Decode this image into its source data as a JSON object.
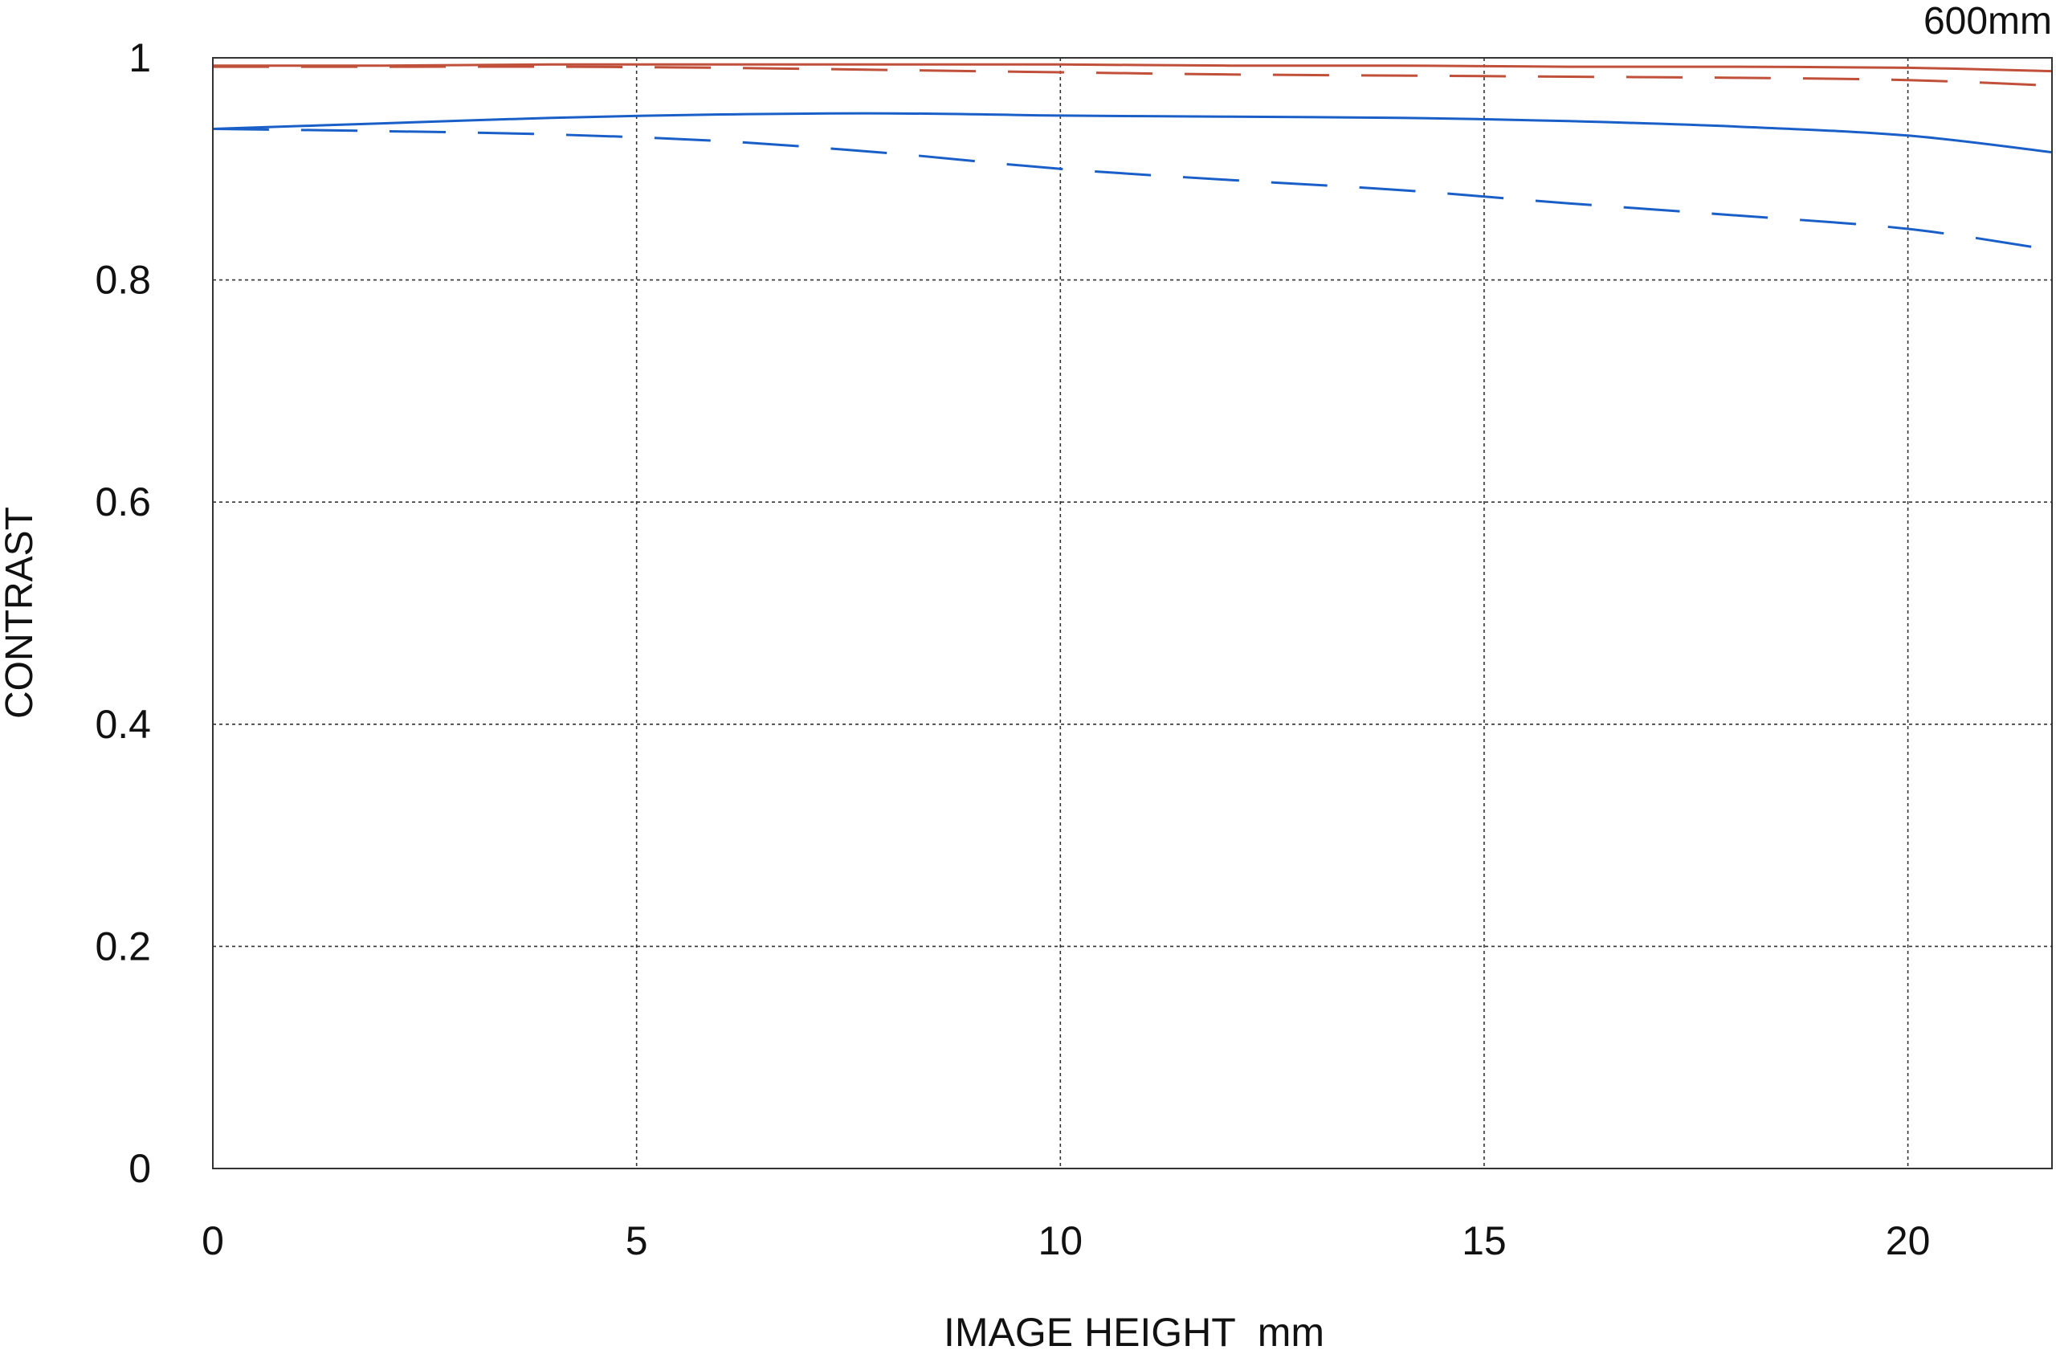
{
  "chart_data": {
    "type": "line",
    "title": "",
    "annotation": "600mm",
    "xlabel": "IMAGE HEIGHT  mm",
    "ylabel": "CONTRAST",
    "xlim": [
      0,
      21.7
    ],
    "ylim": [
      0,
      1
    ],
    "x_ticks": [
      0,
      5,
      10,
      15,
      20
    ],
    "x_tick_labels": [
      "0",
      "5",
      "10",
      "15",
      "20"
    ],
    "y_ticks": [
      0,
      0.2,
      0.4,
      0.6,
      0.8,
      1
    ],
    "y_tick_labels": [
      "0",
      "0.2",
      "0.4",
      "0.6",
      "0.8",
      "1"
    ],
    "grid": true,
    "series": [
      {
        "color": "#c0503a",
        "style": "solid",
        "x": [
          0,
          2,
          4,
          6,
          8,
          10,
          12,
          14,
          16,
          18,
          20,
          21.7
        ],
        "y": [
          0.993,
          0.993,
          0.994,
          0.994,
          0.994,
          0.994,
          0.993,
          0.993,
          0.992,
          0.992,
          0.991,
          0.988
        ]
      },
      {
        "color": "#c0503a",
        "style": "dashed",
        "x": [
          0,
          2,
          4,
          6,
          8,
          10,
          12,
          14,
          16,
          18,
          20,
          21.7
        ],
        "y": [
          0.992,
          0.992,
          0.992,
          0.991,
          0.989,
          0.987,
          0.985,
          0.984,
          0.983,
          0.982,
          0.98,
          0.975
        ]
      },
      {
        "color": "#1a5fc8",
        "style": "solid",
        "x": [
          0,
          2,
          4,
          6,
          8,
          10,
          12,
          14,
          16,
          18,
          20,
          21.7
        ],
        "y": [
          0.936,
          0.941,
          0.946,
          0.949,
          0.95,
          0.948,
          0.947,
          0.946,
          0.943,
          0.938,
          0.93,
          0.915
        ]
      },
      {
        "color": "#1a5fc8",
        "style": "dashed",
        "x": [
          0,
          2,
          4,
          6,
          8,
          10,
          12,
          14,
          16,
          18,
          20,
          21.7
        ],
        "y": [
          0.936,
          0.934,
          0.931,
          0.925,
          0.914,
          0.9,
          0.89,
          0.881,
          0.869,
          0.858,
          0.846,
          0.827
        ]
      }
    ]
  }
}
